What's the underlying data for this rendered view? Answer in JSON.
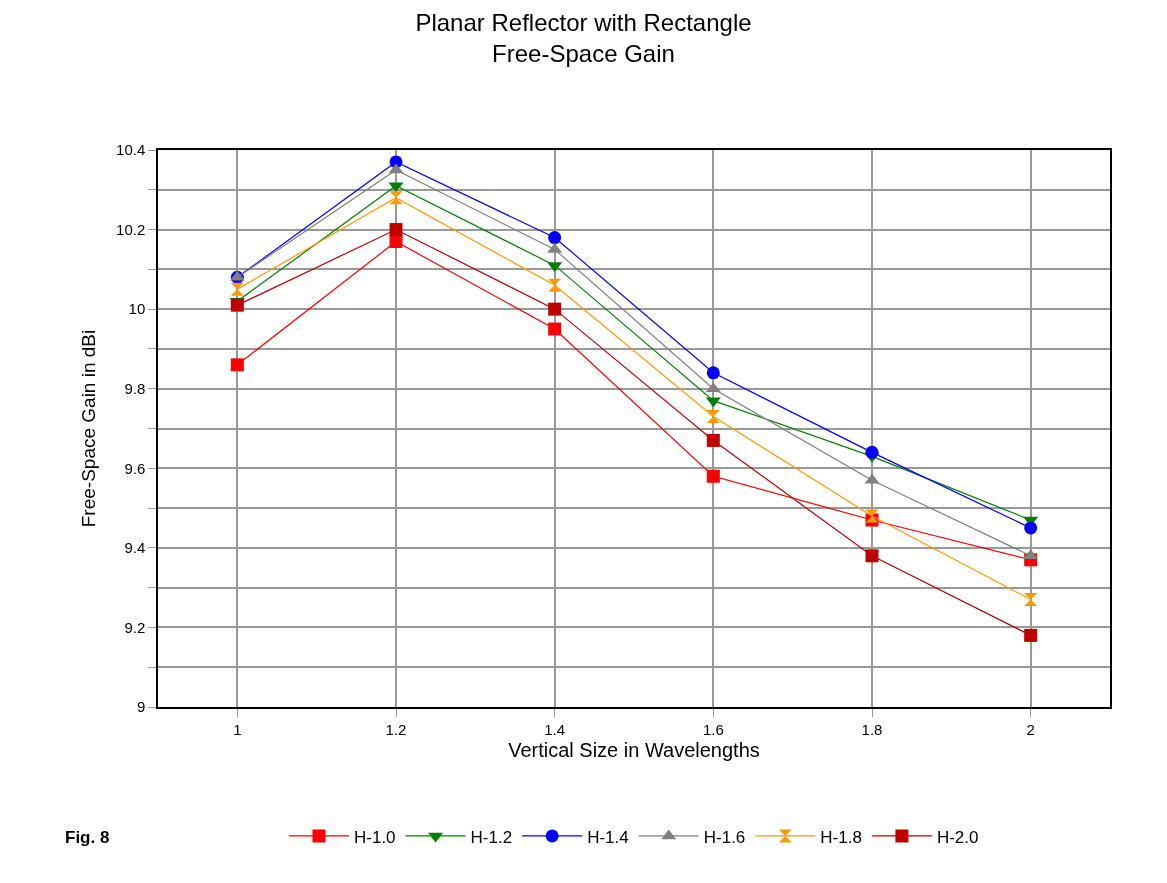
{
  "chart_data": {
    "type": "line",
    "title": "Planar Reflector with Rectangle\nFree-Space Gain",
    "xlabel": "Vertical Size in Wavelengths",
    "ylabel": "Free-Space Gain in dBi",
    "x": [
      1,
      1.2,
      1.4,
      1.6,
      1.8,
      2
    ],
    "series": [
      {
        "name": "H-1.0",
        "color": "#ff0000",
        "marker": "square",
        "values": [
          9.86,
          10.17,
          9.95,
          9.58,
          9.47,
          9.37
        ]
      },
      {
        "name": "H-1.2",
        "color": "#008000",
        "marker": "triangle-down",
        "values": [
          10.02,
          10.31,
          10.11,
          9.77,
          9.63,
          9.47
        ]
      },
      {
        "name": "H-1.4",
        "color": "#0000ff",
        "marker": "circle",
        "values": [
          10.08,
          10.37,
          10.18,
          9.84,
          9.64,
          9.45
        ]
      },
      {
        "name": "H-1.6",
        "color": "#808080",
        "marker": "triangle",
        "values": [
          10.08,
          10.35,
          10.15,
          9.8,
          9.57,
          9.38
        ]
      },
      {
        "name": "H-1.8",
        "color": "#ff9900",
        "values": [
          10.05,
          10.28,
          10.06,
          9.73,
          9.48,
          9.27
        ]
      },
      {
        "name": "H-2.0",
        "color": "#c00000",
        "marker": "square",
        "values": [
          10.01,
          10.2,
          10.0,
          9.67,
          9.38,
          9.18
        ]
      }
    ],
    "xlim": [
      0.9,
      2.1
    ],
    "xticks": [
      1,
      1.2,
      1.4,
      1.6,
      1.8,
      2
    ],
    "ylim": [
      9,
      10.4
    ],
    "yticks": [
      9,
      {
        "value": 9.1,
        "label": null
      },
      9.2,
      {
        "value": 9.3,
        "label": null
      },
      9.4,
      {
        "value": 9.5,
        "label": null
      },
      9.6,
      {
        "value": 9.7,
        "label": null
      },
      9.8,
      {
        "value": 9.9,
        "label": null
      },
      10,
      {
        "value": 10.1,
        "label": null
      },
      10.2,
      {
        "value": 10.3,
        "label": null
      },
      10.4
    ],
    "grid": true,
    "legend": "bottom",
    "line_style": "solid",
    "annotations": [
      "Fig. 8"
    ]
  }
}
